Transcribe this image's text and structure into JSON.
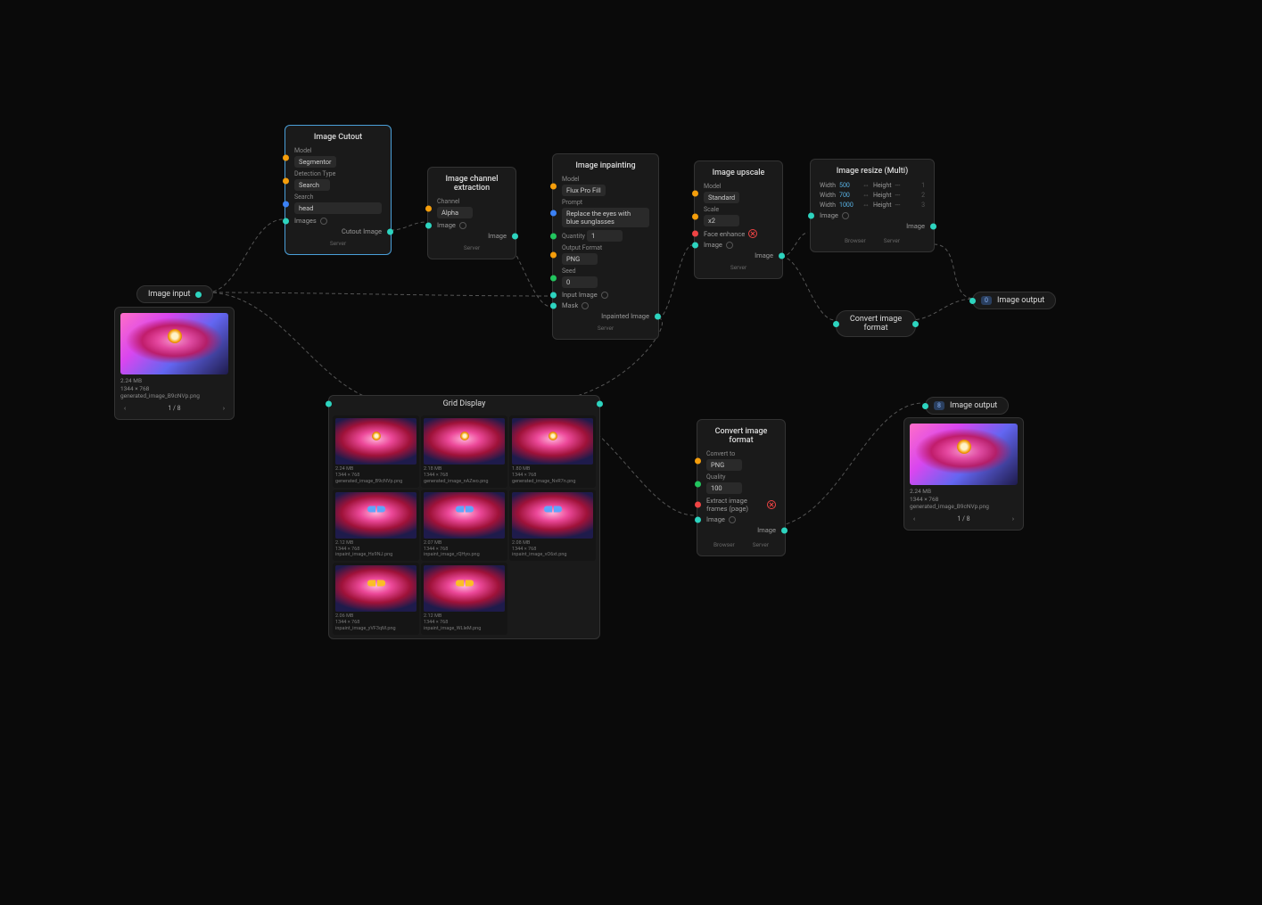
{
  "nodes": {
    "image_input": {
      "title": "Image input"
    },
    "image_output_1": {
      "title": "Image output",
      "badge": "0"
    },
    "image_output_2": {
      "title": "Image output",
      "badge": "8"
    },
    "cutout": {
      "title": "Image Cutout",
      "model_label": "Model",
      "model_value": "Segmentor",
      "detection_label": "Detection Type",
      "detection_value": "Search",
      "search_label": "Search",
      "search_value": "head",
      "images_label": "Images",
      "out_label": "Cutout Image",
      "footer": "Server"
    },
    "channel": {
      "title": "Image channel extraction",
      "channel_label": "Channel",
      "channel_value": "Alpha",
      "image_label": "Image",
      "out_label": "Image",
      "footer": "Server"
    },
    "inpaint": {
      "title": "Image inpainting",
      "model_label": "Model",
      "model_value": "Flux Pro Fill",
      "prompt_label": "Prompt",
      "prompt_value": "Replace the eyes with blue sunglasses",
      "quantity_label": "Quantity",
      "quantity_value": "1",
      "format_label": "Output Format",
      "format_value": "PNG",
      "seed_label": "Seed",
      "seed_value": "0",
      "input_image_label": "Input Image",
      "mask_label": "Mask",
      "out_label": "Inpainted Image",
      "footer": "Server"
    },
    "upscale": {
      "title": "Image upscale",
      "model_label": "Model",
      "model_value": "Standard",
      "scale_label": "Scale",
      "scale_value": "x2",
      "face_label": "Face enhance",
      "image_label": "Image",
      "out_label": "Image",
      "footer": "Server"
    },
    "resize": {
      "title": "Image resize (Multi)",
      "rows": [
        {
          "width_label": "Width",
          "width": "500",
          "height_label": "Height",
          "height": "---",
          "idx": "1"
        },
        {
          "width_label": "Width",
          "width": "700",
          "height_label": "Height",
          "height": "---",
          "idx": "2"
        },
        {
          "width_label": "Width",
          "width": "1000",
          "height_label": "Height",
          "height": "---",
          "idx": "3"
        }
      ],
      "image_label": "Image",
      "out_label": "Image",
      "footer_left": "Browser",
      "footer_right": "Server"
    },
    "convert1": {
      "title": "Convert image format"
    },
    "convert2": {
      "title": "Convert image format",
      "convert_label": "Convert to",
      "convert_value": "PNG",
      "quality_label": "Quality",
      "quality_value": "100",
      "extract_label": "Extract image frames (page)",
      "image_label": "Image",
      "out_label": "Image",
      "footer_left": "Browser",
      "footer_right": "Server"
    },
    "grid": {
      "title": "Grid Display"
    }
  },
  "preview": {
    "size": "2.24 MB",
    "dims": "1344 × 768",
    "filename": "generated_image_B9cNVp.png",
    "page": "1 / 8"
  },
  "output_preview": {
    "size": "2.24 MB",
    "dims": "1344 × 768",
    "filename": "generated_image_B9cNVp.png",
    "page": "1 / 8"
  },
  "grid_items": [
    {
      "size": "2.24 MB",
      "dims": "1344 × 768",
      "name": "generated_image_B9cNVp.png",
      "variant": "plain"
    },
    {
      "size": "2.18 MB",
      "dims": "1344 × 768",
      "name": "generated_image_nAZwo.png",
      "variant": "plain"
    },
    {
      "size": "1.80 MB",
      "dims": "1344 × 768",
      "name": "generated_image_NvR7n.png",
      "variant": "plain"
    },
    {
      "size": "2.12 MB",
      "dims": "1344 × 768",
      "name": "inpaint_image_Hs9NJ.png",
      "variant": "shades"
    },
    {
      "size": "2.07 MB",
      "dims": "1344 × 768",
      "name": "inpaint_image_rQHyo.png",
      "variant": "shades"
    },
    {
      "size": "2.08 MB",
      "dims": "1344 × 768",
      "name": "inpaint_image_vO6xt.png",
      "variant": "shades"
    },
    {
      "size": "2.06 MB",
      "dims": "1344 × 768",
      "name": "inpaint_image_yVF3qM.png",
      "variant": "shades yellow"
    },
    {
      "size": "2.12 MB",
      "dims": "1344 × 768",
      "name": "inpaint_image_WLleM.png",
      "variant": "shades yellow"
    }
  ]
}
